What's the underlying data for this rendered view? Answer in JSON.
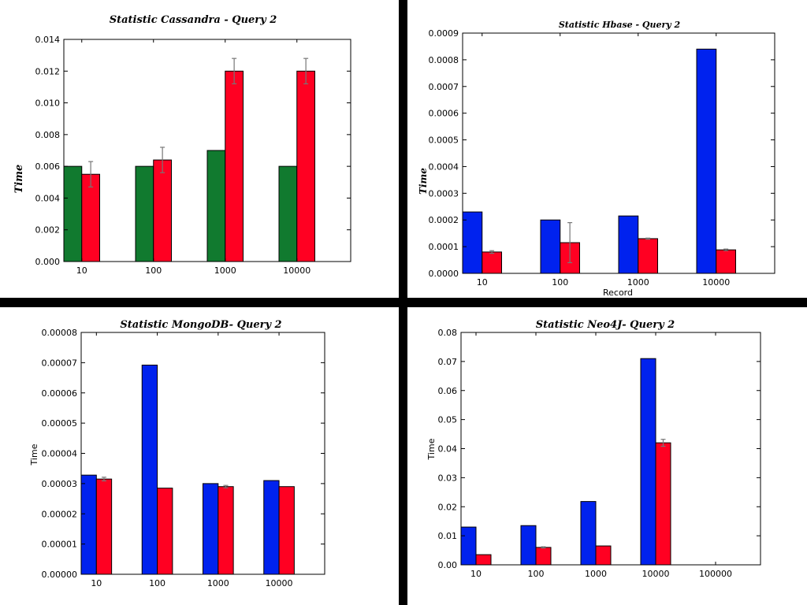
{
  "chart_data": [
    {
      "type": "bar",
      "title": "Statistic Cassandra - Query 2",
      "xlabel": "",
      "ylabel": "Time",
      "categories": [
        "10",
        "100",
        "1000",
        "10000"
      ],
      "ylim": [
        0,
        0.014
      ],
      "yticks": [
        "0.000",
        "0.002",
        "0.004",
        "0.006",
        "0.008",
        "0.010",
        "0.012",
        "0.014"
      ],
      "series": [
        {
          "color": "#117a2f",
          "values": [
            0.006,
            0.006,
            0.007,
            0.006
          ],
          "errors": [
            0,
            0,
            0,
            0
          ]
        },
        {
          "color": "#ff0022",
          "values": [
            0.0055,
            0.0064,
            0.012,
            0.012
          ],
          "errors": [
            0.0008,
            0.0008,
            0.0008,
            0.0008
          ]
        }
      ]
    },
    {
      "type": "bar",
      "title": "Statistic Hbase - Query 2",
      "xlabel": "Record",
      "ylabel": "Time",
      "categories": [
        "10",
        "100",
        "1000",
        "10000"
      ],
      "ylim": [
        0,
        0.0009
      ],
      "yticks": [
        "0.0000",
        "0.0001",
        "0.0002",
        "0.0003",
        "0.0004",
        "0.0005",
        "0.0006",
        "0.0007",
        "0.0008",
        "0.0009"
      ],
      "series": [
        {
          "color": "#0022ee",
          "values": [
            0.00023,
            0.0002,
            0.000215,
            0.00084
          ],
          "errors": [
            0,
            0,
            0,
            0
          ]
        },
        {
          "color": "#ff0022",
          "values": [
            8e-05,
            0.000115,
            0.00013,
            8.8e-05
          ],
          "errors": [
            5e-06,
            7.5e-05,
            2e-06,
            3e-06
          ]
        }
      ]
    },
    {
      "type": "bar",
      "title": "Statistic MongoDB- Query 2",
      "xlabel": "",
      "ylabel": "Time",
      "categories": [
        "10",
        "100",
        "1000",
        "10000"
      ],
      "ylim": [
        0,
        8e-05
      ],
      "yticks": [
        "0.00000",
        "0.00001",
        "0.00002",
        "0.00003",
        "0.00004",
        "0.00005",
        "0.00006",
        "0.00007",
        "0.00008"
      ],
      "series": [
        {
          "color": "#0022ee",
          "values": [
            3.28e-05,
            6.92e-05,
            3e-05,
            3.1e-05
          ],
          "errors": [
            0,
            0,
            0,
            0
          ]
        },
        {
          "color": "#ff0022",
          "values": [
            3.15e-05,
            2.85e-05,
            2.9e-05,
            2.9e-05
          ],
          "errors": [
            6e-07,
            0,
            4e-07,
            0
          ]
        }
      ]
    },
    {
      "type": "bar",
      "title": "Statistic Neo4J- Query 2",
      "xlabel": "",
      "ylabel": "Time",
      "categories": [
        "10",
        "100",
        "1000",
        "10000",
        "100000"
      ],
      "ylim": [
        0,
        0.08
      ],
      "yticks": [
        "0.00",
        "0.01",
        "0.02",
        "0.03",
        "0.04",
        "0.05",
        "0.06",
        "0.07",
        "0.08"
      ],
      "series": [
        {
          "color": "#0022ee",
          "values": [
            0.013,
            0.0135,
            0.0218,
            0.071,
            null
          ],
          "errors": [
            0,
            0,
            0,
            0,
            0
          ]
        },
        {
          "color": "#ff0022",
          "values": [
            0.0035,
            0.006,
            0.0065,
            0.042,
            null
          ],
          "errors": [
            0,
            0.0002,
            0,
            0.0012,
            0
          ]
        }
      ]
    }
  ]
}
